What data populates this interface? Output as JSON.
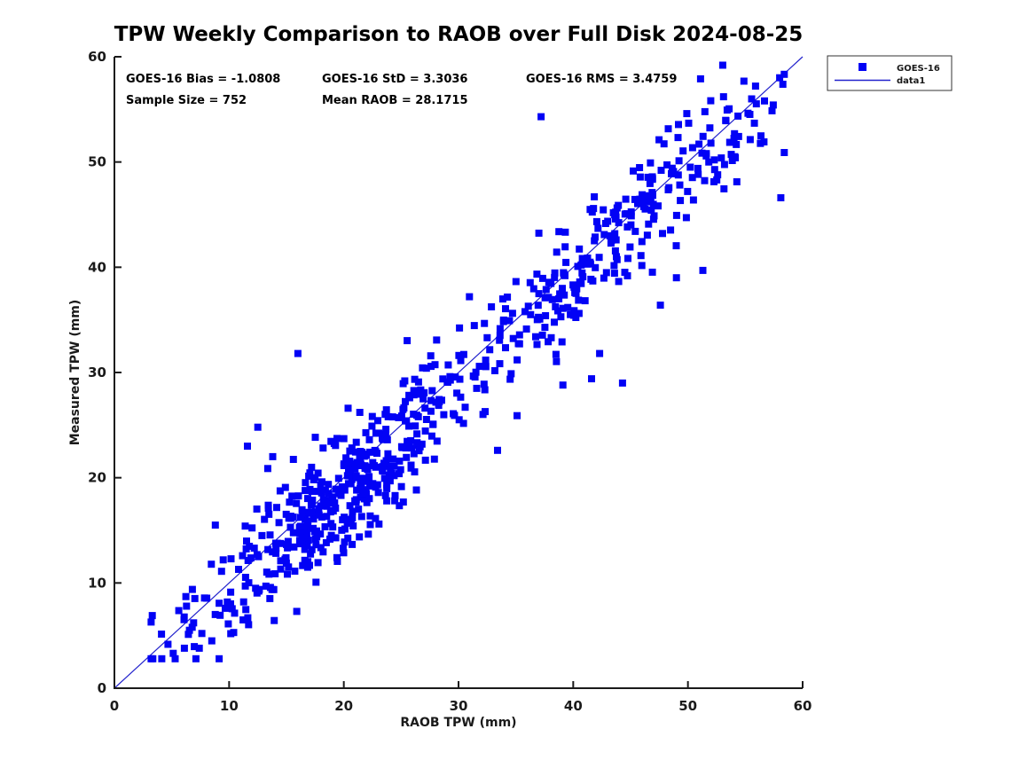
{
  "figure": {
    "title": "TPW Weekly Comparison to RAOB over Full Disk 2024-08-25",
    "stats": {
      "bias": "GOES-16 Bias = -1.0808",
      "std": "GOES-16 StD = 3.3036",
      "rms": "GOES-16 RMS = 3.4759",
      "sample_size": "Sample Size = 752",
      "mean_raob": "Mean RAOB = 28.1715"
    },
    "x_axis": {
      "label": "RAOB TPW (mm)"
    },
    "y_axis": {
      "label": "Measured TPW (mm)"
    },
    "legend": {
      "items": [
        {
          "label": "GOES-16",
          "swatch": "filled-square"
        },
        {
          "label": "data1",
          "swatch": "line"
        }
      ]
    }
  },
  "chart_data": {
    "type": "scatter",
    "title": "TPW Weekly Comparison to RAOB over Full Disk 2024-08-25",
    "xlabel": "RAOB TPW (mm)",
    "ylabel": "Measured TPW (mm)",
    "xlim": [
      0,
      60
    ],
    "ylim": [
      0,
      60
    ],
    "xticks": [
      0,
      10,
      20,
      30,
      40,
      50,
      60
    ],
    "yticks": [
      0,
      10,
      20,
      30,
      40,
      50,
      60
    ],
    "grid": false,
    "legend_position": "outside-top-right",
    "annotations": [
      "GOES-16 Bias = -1.0808",
      "GOES-16 StD = 3.3036",
      "GOES-16 RMS = 3.4759",
      "Sample Size = 752",
      "Mean RAOB = 28.1715"
    ],
    "series": [
      {
        "name": "GOES-16",
        "type": "scatter",
        "marker": "filled-square",
        "marker_size_px": 8,
        "color": "#0202f5",
        "stats": {
          "bias": -1.0808,
          "std": 3.3036,
          "rms": 3.4759,
          "sample_size": 752,
          "mean_raob": 28.1715
        },
        "visible_points": [
          [
            37.2,
            54.3
          ],
          [
            49.9,
            54.6
          ],
          [
            51.1,
            57.9
          ],
          [
            53.1,
            56.2
          ],
          [
            58.0,
            58.0
          ],
          [
            58.1,
            46.6
          ],
          [
            51.3,
            39.7
          ],
          [
            49.0,
            39.0
          ],
          [
            47.6,
            36.4
          ],
          [
            44.3,
            29.0
          ],
          [
            41.6,
            29.4
          ],
          [
            42.3,
            31.8
          ],
          [
            39.1,
            28.8
          ],
          [
            35.1,
            25.9
          ],
          [
            33.4,
            22.6
          ],
          [
            16.0,
            31.8
          ],
          [
            12.5,
            24.8
          ],
          [
            11.6,
            23.0
          ],
          [
            13.8,
            22.0
          ],
          [
            8.8,
            15.5
          ],
          [
            15.9,
            7.3
          ],
          [
            3.3,
            6.9
          ],
          [
            6.1,
            3.8
          ],
          [
            7.4,
            3.8
          ]
        ],
        "point_generator": {
          "seed": 20240825,
          "count": 728,
          "x_components": [
            {
              "weight": 0.5,
              "mean": 18,
              "sd": 5.5
            },
            {
              "weight": 0.15,
              "mean": 27,
              "sd": 5.0
            },
            {
              "weight": 0.22,
              "mean": 40,
              "sd": 5.0
            },
            {
              "weight": 0.13,
              "mean": 50,
              "sd": 4.5
            }
          ],
          "x_clamp": [
            3.2,
            58.4
          ],
          "residual_bias": -1.0808,
          "residual_std": 3.0,
          "residual_clamp": 7.5,
          "y_clamp": [
            2.8,
            59.2
          ]
        }
      },
      {
        "name": "data1",
        "type": "line",
        "color": "#2222cc",
        "points": [
          [
            0,
            0
          ],
          [
            60,
            60
          ]
        ]
      }
    ]
  },
  "colors": {
    "marker": "#0202f5",
    "line": "#2222cc",
    "axis": "#1a1a1a",
    "text": "#000000",
    "background": "#ffffff"
  }
}
